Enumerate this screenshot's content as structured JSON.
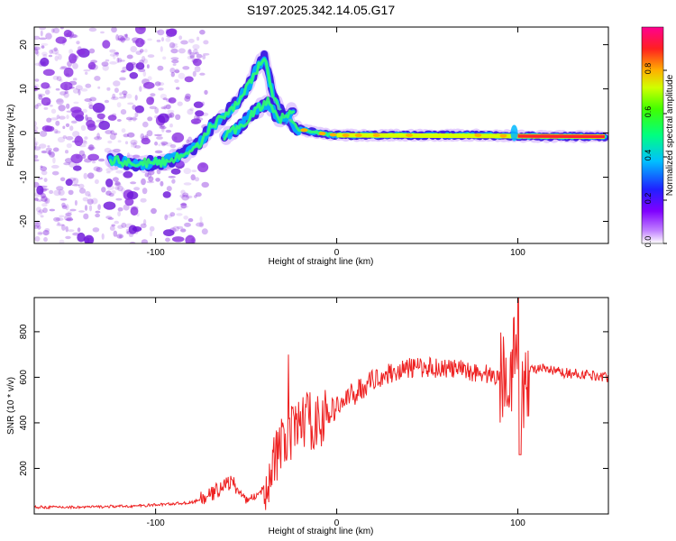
{
  "title": "S197.2025.342.14.05.G17",
  "colors": {
    "snr_line": "#ee2222",
    "axis": "#000000",
    "ridge_fg": "#ff2030",
    "scatter": "#8a30e0"
  },
  "chart_data": [
    {
      "type": "heatmap",
      "xlabel": "Height of straight line (km)",
      "ylabel": "Frequency (Hz)",
      "xlim": [
        -167,
        150
      ],
      "ylim": [
        -25,
        24
      ],
      "xticks": [
        -100,
        0,
        100
      ],
      "xtick_labels": [
        "-100",
        "0",
        "100"
      ],
      "yticks": [
        -20,
        -10,
        0,
        10,
        20
      ],
      "ytick_labels": [
        "-20",
        "-10",
        "0",
        "10",
        "20"
      ],
      "colorbar": {
        "label": "Normalized spectral amplitude",
        "range": [
          0,
          1
        ],
        "ticks": [
          0.0,
          0.2,
          0.4,
          0.6,
          0.8
        ],
        "tick_labels": [
          "0.0",
          "0.2",
          "0.4",
          "0.6",
          "0.8"
        ]
      },
      "ridges": [
        {
          "name": "main",
          "x": [
            -125,
            -110,
            -95,
            -85,
            -75,
            -70,
            -62,
            -55,
            -48,
            -45,
            -40,
            -35,
            -30,
            -22,
            -10,
            0,
            20,
            50,
            80,
            100,
            120,
            148
          ],
          "y": [
            -6,
            -7,
            -6.5,
            -5,
            -2,
            1,
            4,
            7,
            11,
            14,
            17,
            8,
            4,
            1,
            0,
            -0.5,
            -0.5,
            -0.5,
            -0.5,
            -0.7,
            -0.8,
            -0.8
          ]
        },
        {
          "name": "secondary",
          "x": [
            -62,
            -55,
            -45,
            -38,
            -32,
            -28,
            -24
          ],
          "y": [
            -1,
            1,
            5,
            7,
            3,
            4,
            5
          ]
        }
      ]
    },
    {
      "type": "line",
      "xlabel": "Height of straight line (km)",
      "ylabel": "SNR (10 * v/v)",
      "xlim": [
        -167,
        150
      ],
      "ylim": [
        0,
        950
      ],
      "xticks": [
        -100,
        0,
        100
      ],
      "xtick_labels": [
        "-100",
        "0",
        "100"
      ],
      "yticks": [
        200,
        400,
        600,
        800
      ],
      "ytick_labels": [
        "200",
        "400",
        "600",
        "800"
      ],
      "series": [
        {
          "name": "SNR",
          "x": [
            -167,
            -140,
            -110,
            -90,
            -80,
            -70,
            -62,
            -58,
            -50,
            -42,
            -35,
            -30,
            -25,
            -18,
            -10,
            0,
            10,
            20,
            30,
            40,
            50,
            60,
            70,
            80,
            90,
            96,
            100,
            102,
            104,
            110,
            125,
            140,
            150
          ],
          "y": [
            30,
            30,
            35,
            45,
            50,
            80,
            130,
            140,
            60,
            90,
            230,
            300,
            350,
            420,
            400,
            470,
            530,
            590,
            620,
            640,
            645,
            640,
            630,
            620,
            600,
            650,
            700,
            450,
            620,
            640,
            620,
            610,
            600
          ]
        }
      ]
    }
  ]
}
